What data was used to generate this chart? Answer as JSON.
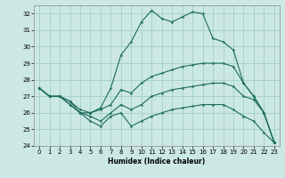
{
  "title": "",
  "xlabel": "Humidex (Indice chaleur)",
  "bg_color": "#cce8e4",
  "grid_color": "#9fd0cb",
  "line_color": "#1a6b5a",
  "xlim": [
    -0.5,
    23.5
  ],
  "ylim": [
    24,
    32.5
  ],
  "yticks": [
    24,
    25,
    26,
    27,
    28,
    29,
    30,
    31,
    32
  ],
  "xticks": [
    0,
    1,
    2,
    3,
    4,
    5,
    6,
    7,
    8,
    9,
    10,
    11,
    12,
    13,
    14,
    15,
    16,
    17,
    18,
    19,
    20,
    21,
    22,
    23
  ],
  "series1_x": [
    0,
    1,
    2,
    3,
    4,
    5,
    6,
    7,
    8,
    9,
    10,
    11,
    12,
    13,
    14,
    15,
    16,
    17,
    18,
    19,
    20,
    21,
    22,
    23
  ],
  "series1_y": [
    27.5,
    27.0,
    27.0,
    26.7,
    26.0,
    26.0,
    26.3,
    27.5,
    29.5,
    30.3,
    31.5,
    32.2,
    31.7,
    31.5,
    31.8,
    32.1,
    32.0,
    30.5,
    30.3,
    29.8,
    27.8,
    27.0,
    26.0,
    24.2
  ],
  "series2_x": [
    0,
    1,
    2,
    3,
    4,
    5,
    6,
    7,
    8,
    9,
    10,
    11,
    12,
    13,
    14,
    15,
    16,
    17,
    18,
    19,
    20,
    21,
    22,
    23
  ],
  "series2_y": [
    27.5,
    27.0,
    27.0,
    26.7,
    26.2,
    26.0,
    26.2,
    26.5,
    27.4,
    27.2,
    27.8,
    28.2,
    28.4,
    28.6,
    28.8,
    28.9,
    29.0,
    29.0,
    29.0,
    28.8,
    27.8,
    27.0,
    26.0,
    24.2
  ],
  "series3_x": [
    0,
    1,
    2,
    3,
    4,
    5,
    6,
    7,
    8,
    9,
    10,
    11,
    12,
    13,
    14,
    15,
    16,
    17,
    18,
    19,
    20,
    21,
    22,
    23
  ],
  "series3_y": [
    27.5,
    27.0,
    27.0,
    26.5,
    26.0,
    25.8,
    25.5,
    26.0,
    26.5,
    26.2,
    26.5,
    27.0,
    27.2,
    27.4,
    27.5,
    27.6,
    27.7,
    27.8,
    27.8,
    27.6,
    27.0,
    26.8,
    26.0,
    24.2
  ],
  "series4_x": [
    0,
    1,
    2,
    3,
    4,
    5,
    6,
    7,
    8,
    9,
    10,
    11,
    12,
    13,
    14,
    15,
    16,
    17,
    18,
    19,
    20,
    21,
    22,
    23
  ],
  "series4_y": [
    27.5,
    27.0,
    27.0,
    26.5,
    26.0,
    25.5,
    25.2,
    25.8,
    26.0,
    25.2,
    25.5,
    25.8,
    26.0,
    26.2,
    26.3,
    26.4,
    26.5,
    26.5,
    26.5,
    26.2,
    25.8,
    25.5,
    24.8,
    24.2
  ]
}
